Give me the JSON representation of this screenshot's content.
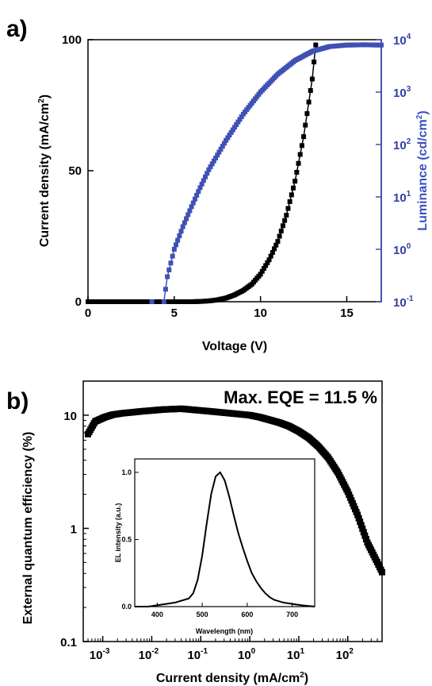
{
  "chart_data": [
    {
      "type": "scatter",
      "panel_label": "a)",
      "xlabel": "Voltage (V)",
      "ylabel": "Current density (mA/cm",
      "ylabel_sup": "2",
      "ylabel_end": ")",
      "y2label": "Luminance (cd/cm",
      "y2label_sup": "2",
      "y2label_end": ")",
      "xlim": [
        0,
        17
      ],
      "ylim": [
        0,
        100
      ],
      "y2lim": [
        0.1,
        10000
      ],
      "y2scale": "log",
      "xticks": [
        0,
        5,
        10,
        15
      ],
      "xtick_labels": [
        "0",
        "5",
        "10",
        "15"
      ],
      "yticks": [
        0,
        50,
        100
      ],
      "ytick_labels": [
        "0",
        "50",
        "100"
      ],
      "y2ticks": [
        {
          "base": "10",
          "exp": "-1",
          "value": 0.1
        },
        {
          "base": "10",
          "exp": "0",
          "value": 1
        },
        {
          "base": "10",
          "exp": "1",
          "value": 10
        },
        {
          "base": "10",
          "exp": "2",
          "value": 100
        },
        {
          "base": "10",
          "exp": "3",
          "value": 1000
        },
        {
          "base": "10",
          "exp": "4",
          "value": 10000
        }
      ],
      "grid": false,
      "series": [
        {
          "axis": "left",
          "color": "#000000",
          "marker": "square",
          "x": [
            0.0,
            1.0,
            2.0,
            3.0,
            4.0,
            5.0,
            6.0,
            6.5,
            7.0,
            7.5,
            8.0,
            8.5,
            9.0,
            9.5,
            10.0,
            10.5,
            11.0,
            11.5,
            12.0,
            12.5,
            13.0,
            13.2
          ],
          "y": [
            0,
            0,
            0,
            0,
            0,
            0,
            0,
            0.1,
            0.3,
            0.7,
            1.4,
            2.6,
            4.3,
            6.7,
            10.5,
            16,
            23,
            33,
            46,
            63,
            85,
            98
          ]
        },
        {
          "axis": "right",
          "color": "#3f51b5",
          "marker": "square",
          "x": [
            3.7,
            4.4,
            4.6,
            5.0,
            5.5,
            6.0,
            6.5,
            7.0,
            8.0,
            9.0,
            10.0,
            11.0,
            12.0,
            13.0,
            14.0,
            15.0,
            16.0,
            17.0
          ],
          "y": [
            0.1,
            0.1,
            0.3,
            1.0,
            2.7,
            6.5,
            15,
            33,
            120,
            380,
            1000,
            2200,
            4000,
            6000,
            7400,
            7900,
            8000,
            7900
          ]
        }
      ]
    },
    {
      "type": "scatter",
      "panel_label": "b)",
      "xlabel": "Current density (mA/cm",
      "xlabel_sup": "2",
      "xlabel_end": ")",
      "ylabel": "External quantum efficiency (%)",
      "xscale": "log",
      "yscale": "log",
      "xlim": [
        0.0004,
        500
      ],
      "ylim": [
        0.1,
        20
      ],
      "xticks": [
        {
          "base": "10",
          "exp": "-3",
          "value": 0.001
        },
        {
          "base": "10",
          "exp": "-2",
          "value": 0.01
        },
        {
          "base": "10",
          "exp": "-1",
          "value": 0.1
        },
        {
          "base": "10",
          "exp": "0",
          "value": 1
        },
        {
          "base": "10",
          "exp": "1",
          "value": 10
        },
        {
          "base": "10",
          "exp": "2",
          "value": 100
        }
      ],
      "yticks": [
        0.1,
        1,
        10
      ],
      "ytick_labels": [
        "0.1",
        "1",
        "10"
      ],
      "annotation": "Max. EQE = 11.5 %",
      "grid": false,
      "series": [
        {
          "color": "#000000",
          "marker": "square",
          "x": [
            0.0005,
            0.0007,
            0.0011,
            0.0016,
            0.0025,
            0.004,
            0.006,
            0.01,
            0.016,
            0.025,
            0.04,
            0.063,
            0.1,
            0.16,
            0.25,
            0.4,
            0.63,
            1,
            1.6,
            2.5,
            4,
            6.3,
            10,
            16,
            25,
            40,
            63,
            100,
            160,
            250,
            400,
            500
          ],
          "y": [
            6.8,
            8.8,
            9.6,
            10.1,
            10.4,
            10.6,
            10.8,
            11.0,
            11.2,
            11.3,
            11.4,
            11.2,
            11.0,
            10.8,
            10.6,
            10.4,
            10.2,
            10.0,
            9.6,
            9.1,
            8.6,
            8.0,
            7.2,
            6.3,
            5.3,
            4.2,
            3.1,
            2.1,
            1.3,
            0.75,
            0.5,
            0.41
          ]
        }
      ],
      "inset": {
        "type": "line",
        "xlabel": "Wavelength (nm)",
        "ylabel": "EL intensity (a.u.)",
        "xlim": [
          350,
          750
        ],
        "ylim": [
          0,
          1.1
        ],
        "xticks": [
          400,
          500,
          600,
          700
        ],
        "xtick_labels": [
          "400",
          "500",
          "600",
          "700"
        ],
        "yticks": [
          0,
          0.5,
          1.0
        ],
        "ytick_labels": [
          "0.0",
          "0.5",
          "1.0"
        ],
        "x": [
          350,
          380,
          400,
          420,
          440,
          450,
          460,
          470,
          480,
          490,
          500,
          510,
          520,
          530,
          540,
          550,
          560,
          570,
          580,
          590,
          600,
          610,
          620,
          630,
          640,
          650,
          660,
          680,
          700,
          720,
          750
        ],
        "y": [
          0.0,
          0.0,
          0.01,
          0.02,
          0.03,
          0.04,
          0.05,
          0.06,
          0.1,
          0.2,
          0.38,
          0.62,
          0.84,
          0.97,
          1.0,
          0.94,
          0.82,
          0.68,
          0.55,
          0.44,
          0.34,
          0.25,
          0.19,
          0.14,
          0.1,
          0.07,
          0.05,
          0.03,
          0.02,
          0.01,
          0.0
        ]
      }
    }
  ]
}
